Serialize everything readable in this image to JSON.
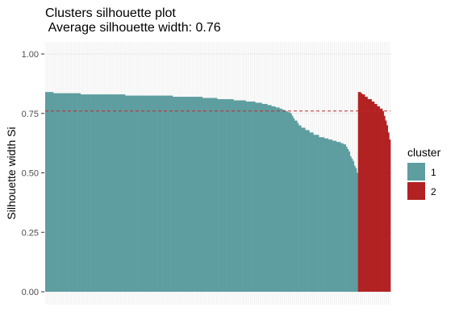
{
  "chart_data": {
    "type": "bar",
    "title": "Clusters silhouette plot",
    "subtitle": " Average silhouette width: 0.76",
    "xlabel": "",
    "ylabel": "Silhouette width Si",
    "ylim": [
      0,
      1.03
    ],
    "yticks": [
      "0.00",
      "0.25",
      "0.50",
      "0.75",
      "1.00"
    ],
    "ytick_values": [
      0,
      0.25,
      0.5,
      0.75,
      1.0
    ],
    "average_line": 0.76,
    "grid": true,
    "legend_placement": "right",
    "legend": {
      "title": "cluster",
      "entries": [
        "1",
        "2"
      ]
    },
    "colors": {
      "1": "#5f9ea0",
      "2": "#b22222",
      "avg_line": "#c0282d",
      "grid": "#ebebeb"
    },
    "series": [
      {
        "name": "1",
        "values": [
          0.84,
          0.84,
          0.84,
          0.84,
          0.84,
          0.84,
          0.835,
          0.835,
          0.835,
          0.835,
          0.835,
          0.835,
          0.835,
          0.835,
          0.835,
          0.835,
          0.835,
          0.835,
          0.835,
          0.835,
          0.835,
          0.835,
          0.835,
          0.835,
          0.835,
          0.835,
          0.83,
          0.83,
          0.83,
          0.83,
          0.83,
          0.83,
          0.83,
          0.83,
          0.83,
          0.83,
          0.83,
          0.83,
          0.83,
          0.83,
          0.83,
          0.83,
          0.83,
          0.83,
          0.83,
          0.83,
          0.83,
          0.83,
          0.83,
          0.83,
          0.83,
          0.83,
          0.83,
          0.83,
          0.83,
          0.83,
          0.83,
          0.83,
          0.83,
          0.825,
          0.825,
          0.825,
          0.825,
          0.825,
          0.825,
          0.825,
          0.825,
          0.825,
          0.825,
          0.825,
          0.825,
          0.825,
          0.825,
          0.825,
          0.825,
          0.825,
          0.825,
          0.825,
          0.825,
          0.825,
          0.825,
          0.825,
          0.825,
          0.825,
          0.825,
          0.825,
          0.825,
          0.825,
          0.825,
          0.825,
          0.825,
          0.825,
          0.825,
          0.825,
          0.82,
          0.82,
          0.82,
          0.82,
          0.82,
          0.82,
          0.82,
          0.82,
          0.82,
          0.82,
          0.82,
          0.82,
          0.82,
          0.82,
          0.82,
          0.82,
          0.82,
          0.82,
          0.82,
          0.82,
          0.82,
          0.82,
          0.815,
          0.815,
          0.815,
          0.815,
          0.815,
          0.815,
          0.815,
          0.815,
          0.815,
          0.815,
          0.815,
          0.81,
          0.81,
          0.81,
          0.81,
          0.81,
          0.81,
          0.81,
          0.81,
          0.81,
          0.81,
          0.81,
          0.81,
          0.805,
          0.805,
          0.805,
          0.805,
          0.805,
          0.805,
          0.805,
          0.805,
          0.805,
          0.8,
          0.8,
          0.8,
          0.8,
          0.8,
          0.8,
          0.8,
          0.795,
          0.795,
          0.795,
          0.795,
          0.795,
          0.79,
          0.79,
          0.79,
          0.79,
          0.785,
          0.785,
          0.785,
          0.78,
          0.78,
          0.78,
          0.775,
          0.775,
          0.775,
          0.77,
          0.77,
          0.765,
          0.765,
          0.76,
          0.76,
          0.755,
          0.755,
          0.75,
          0.74,
          0.73,
          0.72,
          0.72,
          0.71,
          0.7,
          0.7,
          0.69,
          0.69,
          0.69,
          0.68,
          0.68,
          0.68,
          0.67,
          0.67,
          0.67,
          0.66,
          0.66,
          0.66,
          0.66,
          0.65,
          0.65,
          0.65,
          0.65,
          0.645,
          0.645,
          0.645,
          0.64,
          0.64,
          0.64,
          0.635,
          0.635,
          0.635,
          0.63,
          0.63,
          0.63,
          0.625,
          0.625,
          0.62,
          0.62,
          0.61,
          0.6,
          0.59,
          0.57,
          0.56,
          0.55,
          0.53,
          0.52,
          0.5
        ]
      },
      {
        "name": "2",
        "values": [
          0.84,
          0.84,
          0.835,
          0.83,
          0.83,
          0.82,
          0.82,
          0.81,
          0.81,
          0.81,
          0.8,
          0.8,
          0.79,
          0.79,
          0.78,
          0.78,
          0.77,
          0.77,
          0.76,
          0.74,
          0.72,
          0.7,
          0.67,
          0.64
        ]
      }
    ]
  }
}
